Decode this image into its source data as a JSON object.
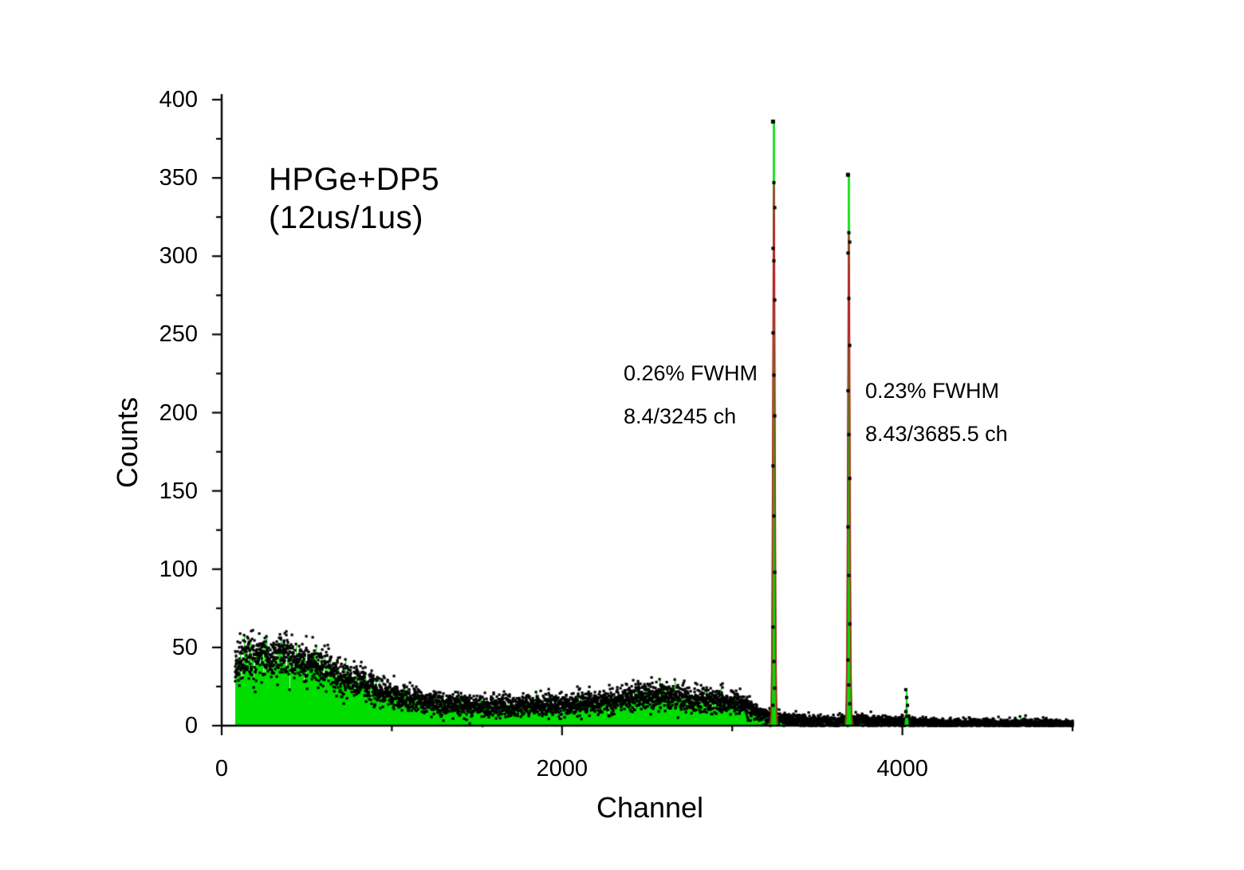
{
  "chart_data": {
    "type": "scatter",
    "title": "HPGe+DP5",
    "subtitle": "(12us/1us)",
    "xlabel": "Channel",
    "ylabel": "Counts",
    "xlim": [
      0,
      5000
    ],
    "ylim": [
      0,
      400
    ],
    "grid": false,
    "legend": false,
    "x_major_ticks": [
      0,
      2000,
      4000
    ],
    "x_minor_ticks": [
      1000,
      3000,
      5000
    ],
    "y_major_tick_step": 50,
    "y_minor_tick_step": 25,
    "colors": {
      "spectrum_fill": "#00DE00",
      "fit_line": "#B22222",
      "marker": "#000000",
      "axis": "#000000",
      "background": "#ffffff"
    },
    "annotations": [
      {
        "name": "peak1-label",
        "line1": "0.26% FWHM",
        "line2": "8.4/3245 ch"
      },
      {
        "name": "peak2-label",
        "line1": "0.23% FWHM",
        "line2": "8.43/3685.5 ch"
      }
    ],
    "series": [
      {
        "name": "spectrum",
        "marker": "black-square",
        "fill": "green-to-zero",
        "x_start_channel": 80,
        "x_end_channel": 5000,
        "continuum_control_points": [
          [
            80,
            40
          ],
          [
            160,
            42.5
          ],
          [
            260,
            44
          ],
          [
            340,
            45
          ],
          [
            420,
            44
          ],
          [
            500,
            41
          ],
          [
            600,
            36.5
          ],
          [
            700,
            32
          ],
          [
            800,
            28
          ],
          [
            900,
            24
          ],
          [
            1000,
            20
          ],
          [
            1100,
            17
          ],
          [
            1200,
            15
          ],
          [
            1320,
            13.8
          ],
          [
            1450,
            13
          ],
          [
            1650,
            12.6
          ],
          [
            1850,
            12.8
          ],
          [
            2050,
            13.5
          ],
          [
            2200,
            15
          ],
          [
            2350,
            17
          ],
          [
            2500,
            18.8
          ],
          [
            2620,
            18.8
          ],
          [
            2750,
            17
          ],
          [
            2880,
            16
          ],
          [
            3000,
            15.5
          ],
          [
            3070,
            13.5
          ],
          [
            3140,
            9
          ],
          [
            3200,
            6
          ],
          [
            3260,
            4.8
          ],
          [
            3350,
            3.8
          ],
          [
            3480,
            3
          ],
          [
            3600,
            3
          ],
          [
            3680,
            3.5
          ],
          [
            3730,
            3.5
          ],
          [
            3820,
            3
          ],
          [
            3920,
            2.6
          ],
          [
            4010,
            2.6
          ],
          [
            4120,
            2
          ],
          [
            4300,
            1.8
          ],
          [
            4600,
            1.6
          ],
          [
            4800,
            1.5
          ],
          [
            5000,
            1.4
          ]
        ]
      },
      {
        "name": "gaussian-fit",
        "type": "line",
        "color": "#B22222"
      }
    ],
    "peaks": [
      {
        "center_channel": 3245,
        "peak_counts": 386,
        "fit_top_counts": 347,
        "fwhm_channels": 8.4,
        "marker_counts": [
          386,
          347,
          331,
          305,
          297,
          272,
          251,
          224,
          198,
          166,
          134,
          98,
          63,
          41,
          24,
          13
        ]
      },
      {
        "center_channel": 3685.5,
        "peak_counts": 352,
        "fit_top_counts": 314,
        "fwhm_channels": 8.43,
        "marker_counts": [
          352,
          315,
          309,
          302,
          273,
          243,
          214,
          186,
          158,
          127,
          96,
          65,
          42,
          26,
          14
        ]
      },
      {
        "center_channel": 4025,
        "peak_counts": 23,
        "fit_top_counts": null,
        "marker_counts": [
          23,
          18,
          13,
          9,
          6
        ]
      }
    ]
  }
}
